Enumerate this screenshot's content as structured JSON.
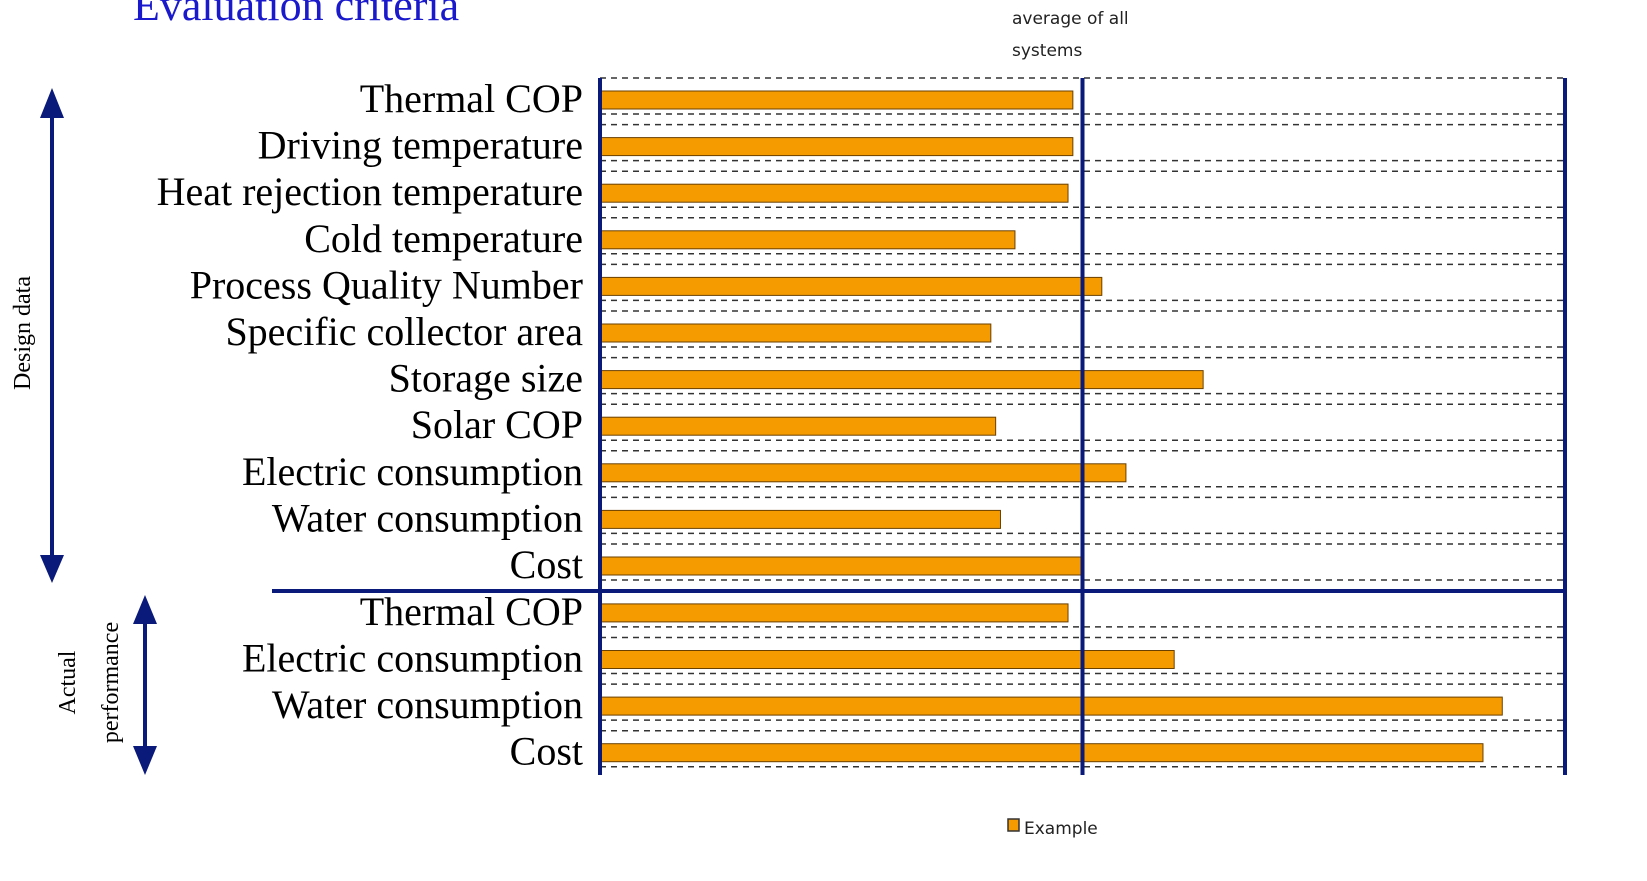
{
  "chart_data": {
    "type": "bar",
    "orientation": "horizontal",
    "title": "Evaluation criteria",
    "annotation_lines": [
      "average of all",
      "systems"
    ],
    "reference_line": 1,
    "xlim": [
      0,
      2
    ],
    "color": "#f59b00",
    "legend": "Example",
    "groups": [
      {
        "label_lines": [
          "Design data"
        ],
        "categories": [
          "Thermal COP",
          "Driving temperature",
          "Heat rejection temperature",
          "Cold temperature",
          "Process Quality Number",
          "Specific collector area",
          "Storage size",
          "Solar COP",
          "Electric consumption",
          "Water consumption",
          "Cost"
        ],
        "values": [
          0.98,
          0.98,
          0.97,
          0.86,
          1.04,
          0.81,
          1.25,
          0.82,
          1.09,
          0.83,
          1.0
        ]
      },
      {
        "label_lines": [
          "Actual",
          "performance"
        ],
        "categories": [
          "Thermal COP",
          "Electric consumption",
          "Water consumption",
          "Cost"
        ],
        "values": [
          0.97,
          1.19,
          1.87,
          1.83
        ]
      }
    ]
  }
}
